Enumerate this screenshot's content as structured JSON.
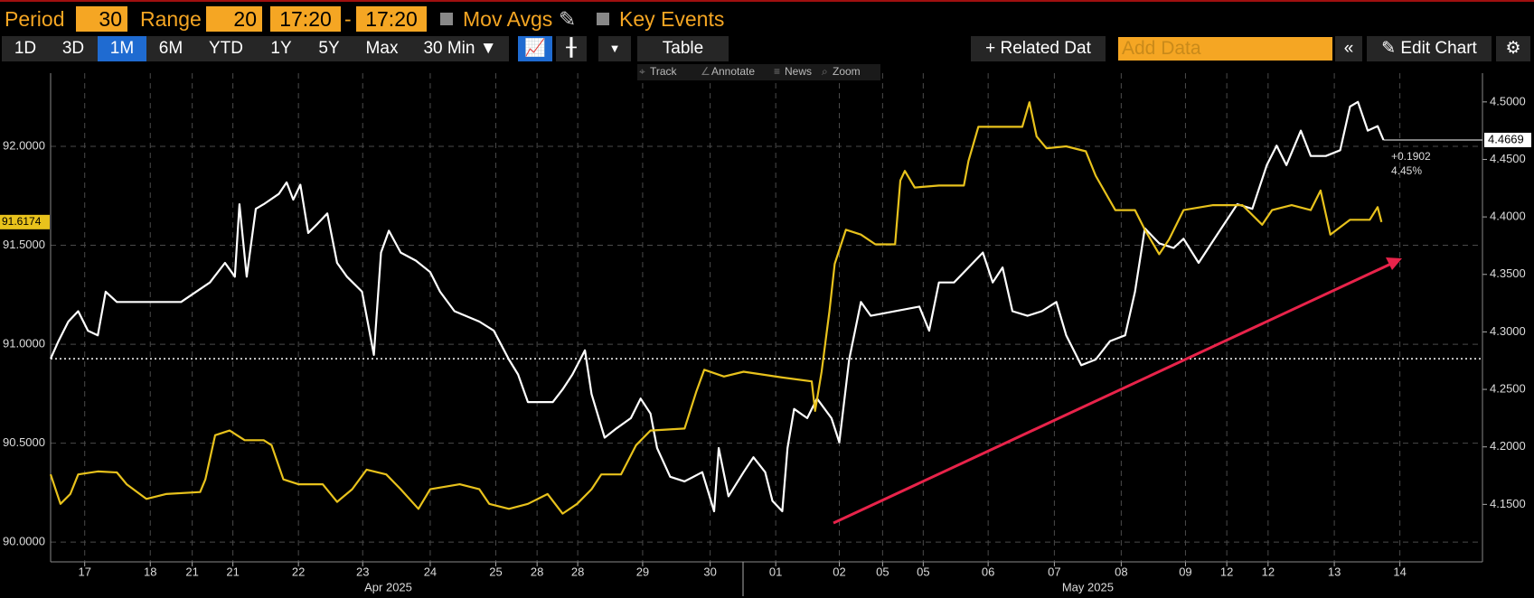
{
  "toolbar": {
    "period_label": "Period",
    "period": "30",
    "range_label": "Range",
    "range": "20",
    "start": "17:20",
    "dash": "-",
    "end": "17:20",
    "mov_avgs": "Mov Avgs",
    "key_events": "Key Events",
    "buttons": [
      "1D",
      "3D",
      "1M",
      "6M",
      "YTD",
      "1Y",
      "5Y",
      "Max",
      "30 Min ▼"
    ],
    "selected_button": 2,
    "table": "Table",
    "related": "+ Related Dat",
    "add_data": "Add Data",
    "edit_chart": "Edit Chart",
    "tools": [
      "Track",
      "Annotate",
      "News",
      "Zoom"
    ]
  },
  "chart_data": {
    "type": "line",
    "grid": true,
    "xlim": [
      0,
      21.84
    ],
    "xticks": [
      {
        "value": 0.52,
        "label": "17"
      },
      {
        "value": 1.52,
        "label": "18"
      },
      {
        "value": 2.16,
        "label": "21"
      },
      {
        "value": 2.78,
        "label": "21"
      },
      {
        "value": 3.78,
        "label": "22"
      },
      {
        "value": 4.76,
        "label": "23"
      },
      {
        "value": 5.79,
        "label": "24"
      },
      {
        "value": 6.79,
        "label": "25"
      },
      {
        "value": 7.42,
        "label": "28"
      },
      {
        "value": 8.04,
        "label": "28"
      },
      {
        "value": 9.03,
        "label": "29"
      },
      {
        "value": 10.06,
        "label": "30"
      },
      {
        "value": 11.06,
        "label": "01"
      },
      {
        "value": 12.03,
        "label": "02"
      },
      {
        "value": 12.69,
        "label": "05"
      },
      {
        "value": 13.31,
        "label": "05"
      },
      {
        "value": 14.3,
        "label": "06"
      },
      {
        "value": 15.31,
        "label": "07"
      },
      {
        "value": 16.33,
        "label": "08"
      },
      {
        "value": 17.31,
        "label": "09"
      },
      {
        "value": 17.94,
        "label": "12"
      },
      {
        "value": 18.57,
        "label": "12"
      },
      {
        "value": 19.58,
        "label": "13"
      },
      {
        "value": 20.58,
        "label": "14"
      }
    ],
    "months": [
      {
        "value": 5.15,
        "label": "Apr 2025"
      },
      {
        "value": 15.82,
        "label": "May 2025"
      }
    ],
    "ylim": [
      89.9,
      92.37
    ],
    "yticks": [
      {
        "value": 90,
        "label": "90.0000"
      },
      {
        "value": 90.5,
        "label": "90.5000"
      },
      {
        "value": 91,
        "label": "91.0000"
      },
      {
        "value": 91.5,
        "label": "91.5000"
      },
      {
        "value": 92,
        "label": "92.0000"
      }
    ],
    "y2lim": [
      4.1,
      4.525
    ],
    "y2ticks": [
      {
        "value": 4.15,
        "label": "4.1500"
      },
      {
        "value": 4.2,
        "label": "4.2000"
      },
      {
        "value": 4.25,
        "label": "4.2500"
      },
      {
        "value": 4.3,
        "label": "4.3000"
      },
      {
        "value": 4.35,
        "label": "4.3500"
      },
      {
        "value": 4.4,
        "label": "4.4000"
      },
      {
        "value": 4.45,
        "label": "4.4500"
      },
      {
        "value": 4.5,
        "label": "4.5000"
      }
    ],
    "series": [
      {
        "color": "#ffffff",
        "axis": "y2",
        "change_labels": [
          "+0.1902",
          "4.45%"
        ],
        "x": [
          0,
          0.12,
          0.27,
          0.42,
          0.57,
          0.72,
          0.84,
          1.01,
          1.99,
          2.43,
          2.66,
          2.81,
          2.88,
          2.99,
          3.13,
          3.25,
          3.48,
          3.6,
          3.7,
          3.81,
          3.93,
          4.07,
          4.22,
          4.37,
          4.52,
          4.75,
          4.93,
          5.04,
          5.16,
          5.34,
          5.57,
          5.79,
          5.94,
          6.16,
          6.54,
          6.76,
          6.99,
          7.13,
          7.28,
          7.66,
          7.81,
          7.96,
          8.15,
          8.25,
          8.45,
          8.63,
          8.85,
          9.0,
          9.15,
          9.25,
          9.45,
          9.67,
          9.94,
          10.12,
          10.19,
          10.34,
          10.57,
          10.72,
          10.9,
          11.01,
          11.16,
          11.24,
          11.34,
          11.54,
          11.69,
          11.91,
          12.03,
          12.18,
          12.36,
          12.51,
          13.25,
          13.4,
          13.55,
          13.78,
          14.0,
          14.22,
          14.37,
          14.52,
          14.67,
          14.9,
          15.12,
          15.34,
          15.49,
          15.72,
          15.94,
          16.16,
          16.39,
          16.54,
          16.69,
          16.91,
          17.13,
          17.28,
          17.51,
          17.81,
          18.1,
          18.33,
          18.55,
          18.7,
          18.85,
          19.07,
          19.22,
          19.45,
          19.67,
          19.82,
          19.94,
          20.09,
          20.24,
          20.33
        ],
        "values": [
          4.2767,
          4.292,
          4.309,
          4.318,
          4.301,
          4.297,
          4.335,
          4.326,
          4.326,
          4.343,
          4.36,
          4.348,
          4.411,
          4.348,
          4.407,
          4.411,
          4.42,
          4.43,
          4.415,
          4.428,
          4.386,
          4.394,
          4.403,
          4.36,
          4.348,
          4.335,
          4.28,
          4.369,
          4.388,
          4.369,
          4.362,
          4.352,
          4.335,
          4.318,
          4.309,
          4.301,
          4.276,
          4.263,
          4.239,
          4.239,
          4.25,
          4.263,
          4.284,
          4.246,
          4.208,
          4.216,
          4.225,
          4.242,
          4.229,
          4.199,
          4.174,
          4.17,
          4.178,
          4.144,
          4.199,
          4.157,
          4.178,
          4.191,
          4.178,
          4.153,
          4.144,
          4.199,
          4.233,
          4.225,
          4.242,
          4.225,
          4.204,
          4.276,
          4.326,
          4.314,
          4.322,
          4.301,
          4.343,
          4.343,
          4.356,
          4.369,
          4.343,
          4.356,
          4.318,
          4.314,
          4.318,
          4.326,
          4.297,
          4.271,
          4.276,
          4.292,
          4.297,
          4.335,
          4.39,
          4.377,
          4.373,
          4.381,
          4.36,
          4.386,
          4.411,
          4.407,
          4.445,
          4.462,
          4.445,
          4.475,
          4.453,
          4.453,
          4.458,
          4.496,
          4.5,
          4.475,
          4.479,
          4.4669
        ]
      },
      {
        "color": "#e8c21c",
        "x": [
          0,
          0.15,
          0.3,
          0.42,
          0.72,
          1.01,
          1.16,
          1.46,
          1.76,
          2.28,
          2.36,
          2.51,
          2.73,
          2.96,
          3.25,
          3.37,
          3.55,
          3.78,
          4.15,
          4.37,
          4.6,
          4.82,
          5.12,
          5.34,
          5.61,
          5.79,
          6.24,
          6.54,
          6.69,
          6.99,
          7.28,
          7.58,
          7.81,
          8.03,
          8.25,
          8.4,
          8.7,
          8.93,
          9.15,
          9.67,
          9.85,
          9.97,
          10.27,
          10.57,
          11.16,
          11.61,
          11.66,
          11.76,
          11.88,
          11.96,
          12.13,
          12.36,
          12.58,
          12.88,
          12.96,
          13.03,
          13.18,
          13.55,
          13.93,
          14.0,
          14.15,
          14.45,
          14.82,
          14.93,
          15.04,
          15.19,
          15.49,
          15.79,
          15.94,
          16.24,
          16.54,
          16.69,
          16.91,
          17.06,
          17.28,
          17.73,
          18.18,
          18.48,
          18.63,
          18.93,
          19.22,
          19.37,
          19.52,
          19.82,
          20.12,
          20.24,
          20.3
        ],
        "values": [
          90.342,
          90.193,
          90.243,
          90.342,
          90.357,
          90.352,
          90.292,
          90.218,
          90.243,
          90.253,
          90.317,
          90.54,
          90.564,
          90.515,
          90.515,
          90.49,
          90.317,
          90.292,
          90.292,
          90.203,
          90.267,
          90.366,
          90.342,
          90.267,
          90.168,
          90.267,
          90.292,
          90.267,
          90.193,
          90.168,
          90.193,
          90.243,
          90.144,
          90.193,
          90.267,
          90.342,
          90.342,
          90.49,
          90.564,
          90.574,
          90.762,
          90.871,
          90.837,
          90.861,
          90.832,
          90.812,
          90.663,
          90.861,
          91.168,
          91.406,
          91.579,
          91.554,
          91.505,
          91.505,
          91.827,
          91.876,
          91.792,
          91.802,
          91.802,
          91.926,
          92.099,
          92.099,
          92.099,
          92.223,
          92.05,
          91.99,
          92.0,
          91.975,
          91.852,
          91.678,
          91.678,
          91.579,
          91.455,
          91.53,
          91.678,
          91.703,
          91.703,
          91.604,
          91.678,
          91.703,
          91.678,
          91.777,
          91.554,
          91.629,
          91.629,
          91.693,
          91.6174
        ]
      }
    ]
  }
}
